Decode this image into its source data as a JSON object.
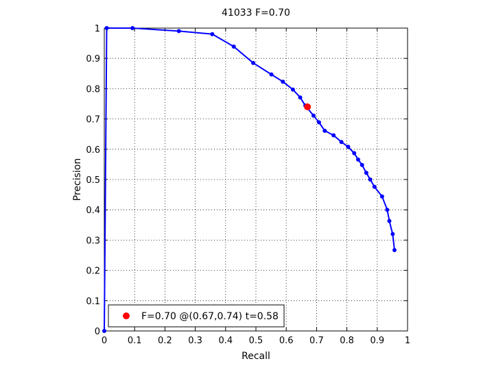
{
  "chart_data": {
    "type": "line",
    "title": "41033 F=0.70",
    "xlabel": "Recall",
    "ylabel": "Precision",
    "xlim": [
      0,
      1
    ],
    "ylim": [
      0,
      1
    ],
    "xticks": [
      "0",
      "0.1",
      "0.2",
      "0.3",
      "0.4",
      "0.5",
      "0.6",
      "0.7",
      "0.8",
      "0.9",
      "1"
    ],
    "yticks": [
      "0",
      "0.1",
      "0.2",
      "0.3",
      "0.4",
      "0.5",
      "0.6",
      "0.7",
      "0.8",
      "0.9",
      "1"
    ],
    "grid": true,
    "series": [
      {
        "color": "#0000ff",
        "points": [
          [
            0.957,
            0.267
          ],
          [
            0.951,
            0.32
          ],
          [
            0.94,
            0.363
          ],
          [
            0.933,
            0.4
          ],
          [
            0.916,
            0.444
          ],
          [
            0.891,
            0.476
          ],
          [
            0.877,
            0.5
          ],
          [
            0.864,
            0.522
          ],
          [
            0.85,
            0.548
          ],
          [
            0.837,
            0.566
          ],
          [
            0.824,
            0.587
          ],
          [
            0.804,
            0.608
          ],
          [
            0.782,
            0.624
          ],
          [
            0.756,
            0.646
          ],
          [
            0.727,
            0.661
          ],
          [
            0.708,
            0.689
          ],
          [
            0.69,
            0.711
          ],
          [
            0.663,
            0.744
          ],
          [
            0.646,
            0.771
          ],
          [
            0.622,
            0.797
          ],
          [
            0.589,
            0.823
          ],
          [
            0.551,
            0.847
          ],
          [
            0.491,
            0.885
          ],
          [
            0.427,
            0.939
          ],
          [
            0.356,
            0.98
          ],
          [
            0.246,
            0.99
          ],
          [
            0.093,
            1.0
          ],
          [
            0.008,
            1.0
          ],
          [
            0.0,
            0.0
          ]
        ]
      }
    ],
    "highlight": {
      "recall": 0.67,
      "precision": 0.74,
      "color": "#ff0000"
    },
    "legend": {
      "placement": "bottom-left",
      "label": "F=0.70 @(0.67,0.74) t=0.58"
    }
  }
}
